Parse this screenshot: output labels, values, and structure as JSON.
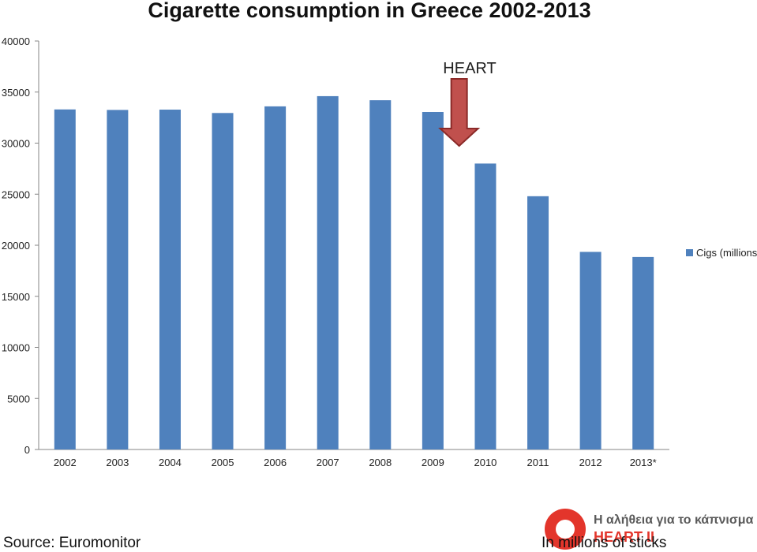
{
  "chart_data": {
    "type": "bar",
    "title": "Cigarette consumption in Greece 2002-2013",
    "categories": [
      "2002",
      "2003",
      "2004",
      "2005",
      "2006",
      "2007",
      "2008",
      "2009",
      "2010",
      "2011",
      "2012",
      "2013*"
    ],
    "series": [
      {
        "name": "Cigs (millions)",
        "color": "#4f81bd",
        "values": [
          33300,
          33250,
          33280,
          32950,
          33600,
          34600,
          34200,
          33050,
          28000,
          24800,
          19350,
          18850
        ]
      }
    ],
    "yticks": [
      "0",
      "5000",
      "10000",
      "15000",
      "20000",
      "25000",
      "30000",
      "35000",
      "40000"
    ],
    "ylim": [
      0,
      40000
    ],
    "grid": false,
    "legend_position": "right",
    "annotation": {
      "label": "HEART",
      "color": "#c0504d",
      "points_between": [
        "2009",
        "2010"
      ]
    }
  },
  "footer": {
    "source": "Source: Euromonitor",
    "note": "In millions of sticks",
    "logo_tagline": "Η αλήθεια για το κάπνισμα",
    "logo_brand": "HEART II"
  }
}
